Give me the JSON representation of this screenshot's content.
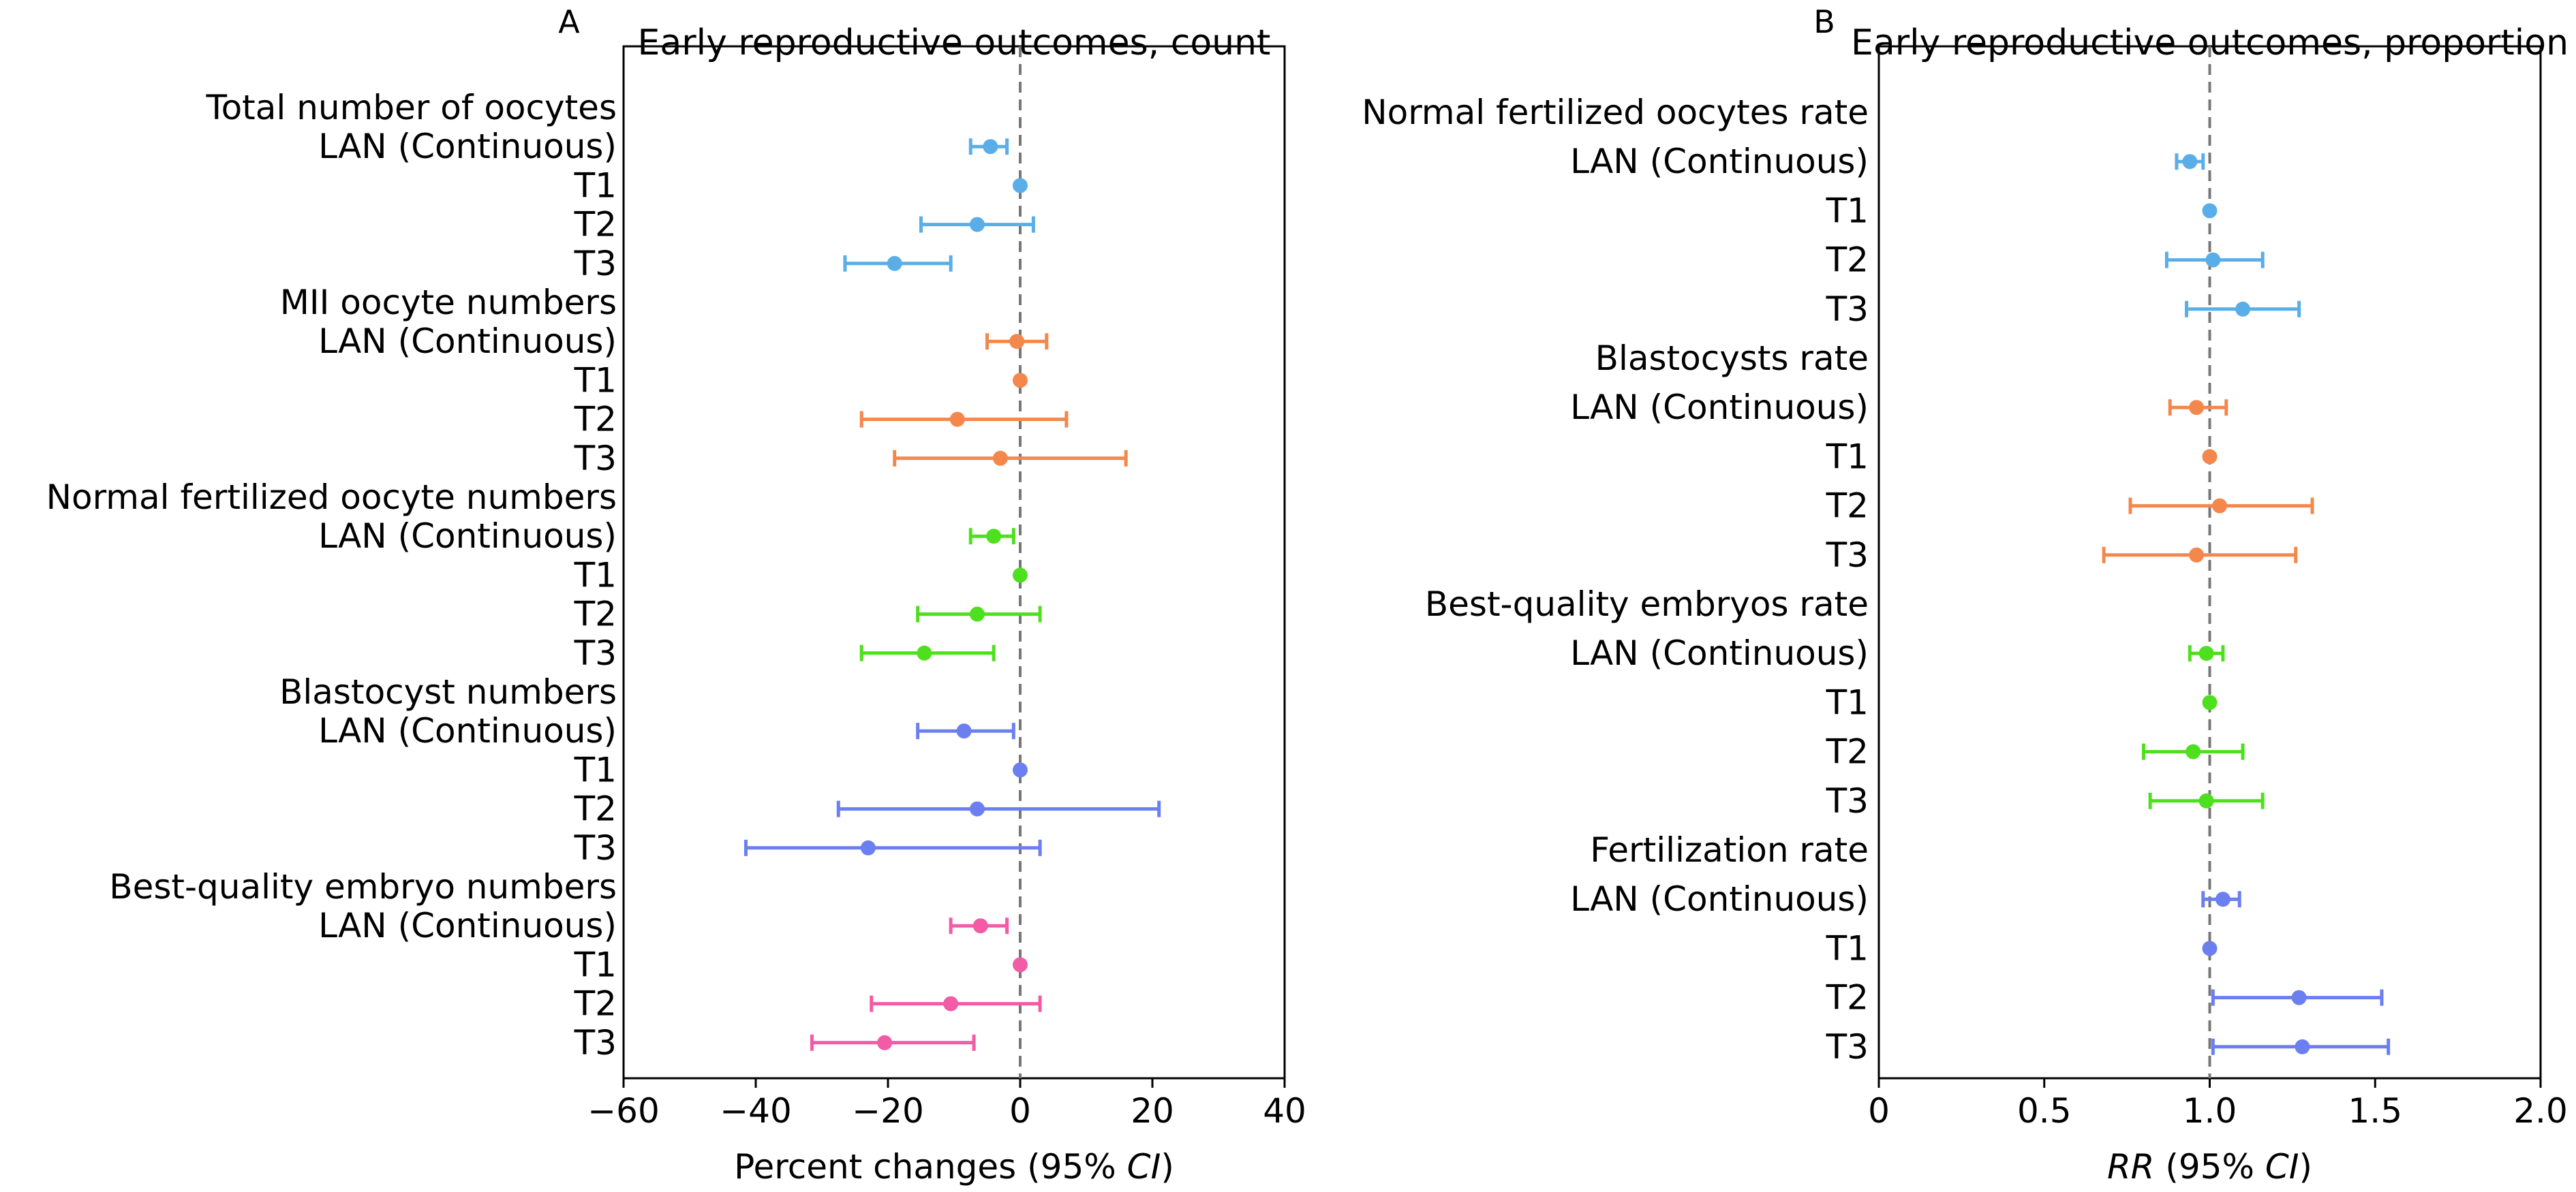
{
  "chart_data": [
    {
      "type": "forest",
      "panel": "A",
      "title": "Early reproductive outcomes, count",
      "xlabel": "Percent changes (95% CI)",
      "xlabel_parts": [
        {
          "text": "Percent changes (95% ",
          "italic": false
        },
        {
          "text": "CI",
          "italic": true
        },
        {
          "text": ")",
          "italic": false
        }
      ],
      "xlim": [
        -60,
        40
      ],
      "xticks": [
        -60,
        -40,
        -20,
        0,
        20,
        40
      ],
      "xtick_labels": [
        "−60",
        "−40",
        "−20",
        "0",
        "20",
        "40"
      ],
      "reference_line": 0,
      "grid": false,
      "groups": [
        {
          "name": "Total number of oocytes",
          "color": "#5aaee8",
          "rows": [
            {
              "label": "LAN (Continuous)",
              "estimate": -4.5,
              "lower": -7.5,
              "upper": -2
            },
            {
              "label": "T1",
              "estimate": 0,
              "lower": 0,
              "upper": 0
            },
            {
              "label": "T2",
              "estimate": -6.5,
              "lower": -15,
              "upper": 2
            },
            {
              "label": "T3",
              "estimate": -19,
              "lower": -26.5,
              "upper": -10.5
            }
          ]
        },
        {
          "name": "MII oocyte numbers",
          "color": "#f4874b",
          "rows": [
            {
              "label": "LAN (Continuous)",
              "estimate": -0.5,
              "lower": -5,
              "upper": 4
            },
            {
              "label": "T1",
              "estimate": 0,
              "lower": 0,
              "upper": 0
            },
            {
              "label": "T2",
              "estimate": -9.5,
              "lower": -24,
              "upper": 7
            },
            {
              "label": "T3",
              "estimate": -3,
              "lower": -19,
              "upper": 16
            }
          ]
        },
        {
          "name": "Normal fertilized oocyte numbers",
          "color": "#4ee01e",
          "rows": [
            {
              "label": "LAN (Continuous)",
              "estimate": -4,
              "lower": -7.5,
              "upper": -1
            },
            {
              "label": "T1",
              "estimate": 0,
              "lower": 0,
              "upper": 0
            },
            {
              "label": "T2",
              "estimate": -6.5,
              "lower": -15.5,
              "upper": 3
            },
            {
              "label": "T3",
              "estimate": -14.5,
              "lower": -24,
              "upper": -4
            }
          ]
        },
        {
          "name": "Blastocyst numbers",
          "color": "#6b7ff0",
          "rows": [
            {
              "label": "LAN (Continuous)",
              "estimate": -8.5,
              "lower": -15.5,
              "upper": -1
            },
            {
              "label": "T1",
              "estimate": 0,
              "lower": 0,
              "upper": 0
            },
            {
              "label": "T2",
              "estimate": -6.5,
              "lower": -27.5,
              "upper": 21
            },
            {
              "label": "T3",
              "estimate": -23,
              "lower": -41.5,
              "upper": 3
            }
          ]
        },
        {
          "name": "Best-quality embryo numbers",
          "color": "#f25ba6",
          "rows": [
            {
              "label": "LAN (Continuous)",
              "estimate": -6,
              "lower": -10.5,
              "upper": -2
            },
            {
              "label": "T1",
              "estimate": 0,
              "lower": 0,
              "upper": 0
            },
            {
              "label": "T2",
              "estimate": -10.5,
              "lower": -22.5,
              "upper": 3
            },
            {
              "label": "T3",
              "estimate": -20.5,
              "lower": -31.5,
              "upper": -7
            }
          ]
        }
      ]
    },
    {
      "type": "forest",
      "panel": "B",
      "title": "Early reproductive outcomes, proportion",
      "xlabel": "RR (95% CI)",
      "xlabel_parts": [
        {
          "text": "RR",
          "italic": true
        },
        {
          "text": " (95% ",
          "italic": false
        },
        {
          "text": "CI",
          "italic": true
        },
        {
          "text": ")",
          "italic": false
        }
      ],
      "xlim": [
        0,
        2
      ],
      "xticks": [
        0,
        0.5,
        1,
        1.5,
        2
      ],
      "xtick_labels": [
        "0",
        "0.5",
        "1.0",
        "1.5",
        "2.0"
      ],
      "reference_line": 1,
      "grid": false,
      "groups": [
        {
          "name": "Normal fertilized oocytes rate",
          "color": "#5aaee8",
          "rows": [
            {
              "label": "LAN (Continuous)",
              "estimate": 0.94,
              "lower": 0.9,
              "upper": 0.98
            },
            {
              "label": "T1",
              "estimate": 1.0,
              "lower": 1.0,
              "upper": 1.0
            },
            {
              "label": "T2",
              "estimate": 1.01,
              "lower": 0.87,
              "upper": 1.16
            },
            {
              "label": "T3",
              "estimate": 1.1,
              "lower": 0.93,
              "upper": 1.27
            }
          ]
        },
        {
          "name": "Blastocysts rate",
          "color": "#f4874b",
          "rows": [
            {
              "label": "LAN (Continuous)",
              "estimate": 0.96,
              "lower": 0.88,
              "upper": 1.05
            },
            {
              "label": "T1",
              "estimate": 1.0,
              "lower": 1.0,
              "upper": 1.0
            },
            {
              "label": "T2",
              "estimate": 1.03,
              "lower": 0.76,
              "upper": 1.31
            },
            {
              "label": "T3",
              "estimate": 0.96,
              "lower": 0.68,
              "upper": 1.26
            }
          ]
        },
        {
          "name": "Best-quality embryos rate",
          "color": "#4ee01e",
          "rows": [
            {
              "label": "LAN (Continuous)",
              "estimate": 0.99,
              "lower": 0.94,
              "upper": 1.04
            },
            {
              "label": "T1",
              "estimate": 1.0,
              "lower": 1.0,
              "upper": 1.0
            },
            {
              "label": "T2",
              "estimate": 0.95,
              "lower": 0.8,
              "upper": 1.1
            },
            {
              "label": "T3",
              "estimate": 0.99,
              "lower": 0.82,
              "upper": 1.16
            }
          ]
        },
        {
          "name": "Fertilization rate",
          "color": "#6b7ff0",
          "rows": [
            {
              "label": "LAN (Continuous)",
              "estimate": 1.04,
              "lower": 0.98,
              "upper": 1.09
            },
            {
              "label": "T1",
              "estimate": 1.0,
              "lower": 1.0,
              "upper": 1.0
            },
            {
              "label": "T2",
              "estimate": 1.27,
              "lower": 1.01,
              "upper": 1.52
            },
            {
              "label": "T3",
              "estimate": 1.28,
              "lower": 1.01,
              "upper": 1.54
            }
          ]
        }
      ]
    }
  ]
}
